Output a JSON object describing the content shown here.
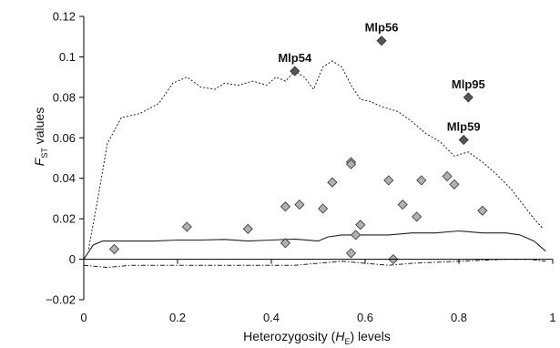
{
  "chart_data": {
    "type": "scatter",
    "xlabel_parts": [
      "Heterozygosity (",
      "H",
      "E",
      ") levels"
    ],
    "ylabel_parts": [
      "F",
      "ST",
      " values"
    ],
    "xlim": [
      0,
      1
    ],
    "ylim": [
      -0.02,
      0.12
    ],
    "x_ticks": [
      0,
      0.2,
      0.4,
      0.6,
      0.8,
      1
    ],
    "x_tick_labels": [
      "0",
      "0.2",
      "0.4",
      "0.6",
      "0.8",
      "1"
    ],
    "y_ticks": [
      -0.02,
      0,
      0.02,
      0.04,
      0.06,
      0.08,
      0.1,
      0.12
    ],
    "y_tick_labels": [
      "−0.02",
      "0",
      "0.02",
      "0.04",
      "0.06",
      "0.08",
      "0.1",
      "0.12"
    ],
    "grid": false,
    "colors": {
      "neutral_marker": "#b0b0b0",
      "outlier_marker": "#555555",
      "marker_edge": "#333333",
      "lines": "#222222"
    },
    "neutral_points": [
      {
        "x": 0.065,
        "y": 0.005
      },
      {
        "x": 0.22,
        "y": 0.016
      },
      {
        "x": 0.35,
        "y": 0.015
      },
      {
        "x": 0.43,
        "y": 0.008
      },
      {
        "x": 0.43,
        "y": 0.026
      },
      {
        "x": 0.46,
        "y": 0.027
      },
      {
        "x": 0.51,
        "y": 0.025
      },
      {
        "x": 0.53,
        "y": 0.038
      },
      {
        "x": 0.57,
        "y": 0.048
      },
      {
        "x": 0.57,
        "y": 0.047
      },
      {
        "x": 0.57,
        "y": 0.003
      },
      {
        "x": 0.58,
        "y": 0.012
      },
      {
        "x": 0.59,
        "y": 0.017
      },
      {
        "x": 0.65,
        "y": 0.039
      },
      {
        "x": 0.66,
        "y": 0.0
      },
      {
        "x": 0.68,
        "y": 0.027
      },
      {
        "x": 0.71,
        "y": 0.021
      },
      {
        "x": 0.72,
        "y": 0.039
      },
      {
        "x": 0.775,
        "y": 0.041
      },
      {
        "x": 0.79,
        "y": 0.037
      },
      {
        "x": 0.85,
        "y": 0.024
      }
    ],
    "outlier_points": [
      {
        "label": "Mlp54",
        "x": 0.45,
        "y": 0.093
      },
      {
        "label": "Mlp56",
        "x": 0.635,
        "y": 0.108
      },
      {
        "label": "Mlp95",
        "x": 0.82,
        "y": 0.08
      },
      {
        "label": "Mlp59",
        "x": 0.81,
        "y": 0.059
      }
    ],
    "series": [
      {
        "style": "dotted",
        "x": [
          0.01,
          0.03,
          0.05,
          0.08,
          0.12,
          0.16,
          0.19,
          0.22,
          0.25,
          0.28,
          0.3,
          0.33,
          0.36,
          0.39,
          0.41,
          0.43,
          0.45,
          0.47,
          0.49,
          0.51,
          0.53,
          0.55,
          0.57,
          0.59,
          0.61,
          0.64,
          0.67,
          0.7,
          0.73,
          0.76,
          0.79,
          0.82,
          0.85,
          0.88,
          0.91,
          0.94,
          0.96,
          0.98
        ],
        "y": [
          0.005,
          0.03,
          0.057,
          0.07,
          0.072,
          0.077,
          0.087,
          0.09,
          0.085,
          0.084,
          0.087,
          0.086,
          0.088,
          0.086,
          0.09,
          0.088,
          0.093,
          0.09,
          0.084,
          0.095,
          0.098,
          0.095,
          0.086,
          0.079,
          0.078,
          0.075,
          0.073,
          0.068,
          0.062,
          0.058,
          0.051,
          0.053,
          0.048,
          0.042,
          0.035,
          0.026,
          0.02,
          0.015
        ]
      },
      {
        "style": "solid",
        "x": [
          0.0,
          0.02,
          0.04,
          0.06,
          0.1,
          0.15,
          0.2,
          0.25,
          0.3,
          0.35,
          0.4,
          0.45,
          0.5,
          0.52,
          0.55,
          0.6,
          0.65,
          0.7,
          0.75,
          0.8,
          0.85,
          0.9,
          0.93,
          0.96,
          0.985
        ],
        "y": [
          0.0,
          0.007,
          0.009,
          0.009,
          0.009,
          0.009,
          0.0095,
          0.0095,
          0.0098,
          0.009,
          0.0095,
          0.01,
          0.009,
          0.011,
          0.012,
          0.012,
          0.012,
          0.013,
          0.013,
          0.014,
          0.013,
          0.013,
          0.012,
          0.009,
          0.004
        ]
      },
      {
        "style": "dashdot",
        "x": [
          0.0,
          0.05,
          0.1,
          0.2,
          0.3,
          0.4,
          0.45,
          0.5,
          0.55,
          0.6,
          0.65,
          0.7,
          0.8,
          0.9,
          0.95,
          0.985
        ],
        "y": [
          -0.003,
          -0.004,
          -0.003,
          -0.003,
          -0.003,
          -0.003,
          -0.003,
          -0.002,
          -0.001,
          -0.002,
          -0.003,
          -0.002,
          -0.001,
          0.0,
          0.0,
          -0.001
        ]
      }
    ]
  }
}
